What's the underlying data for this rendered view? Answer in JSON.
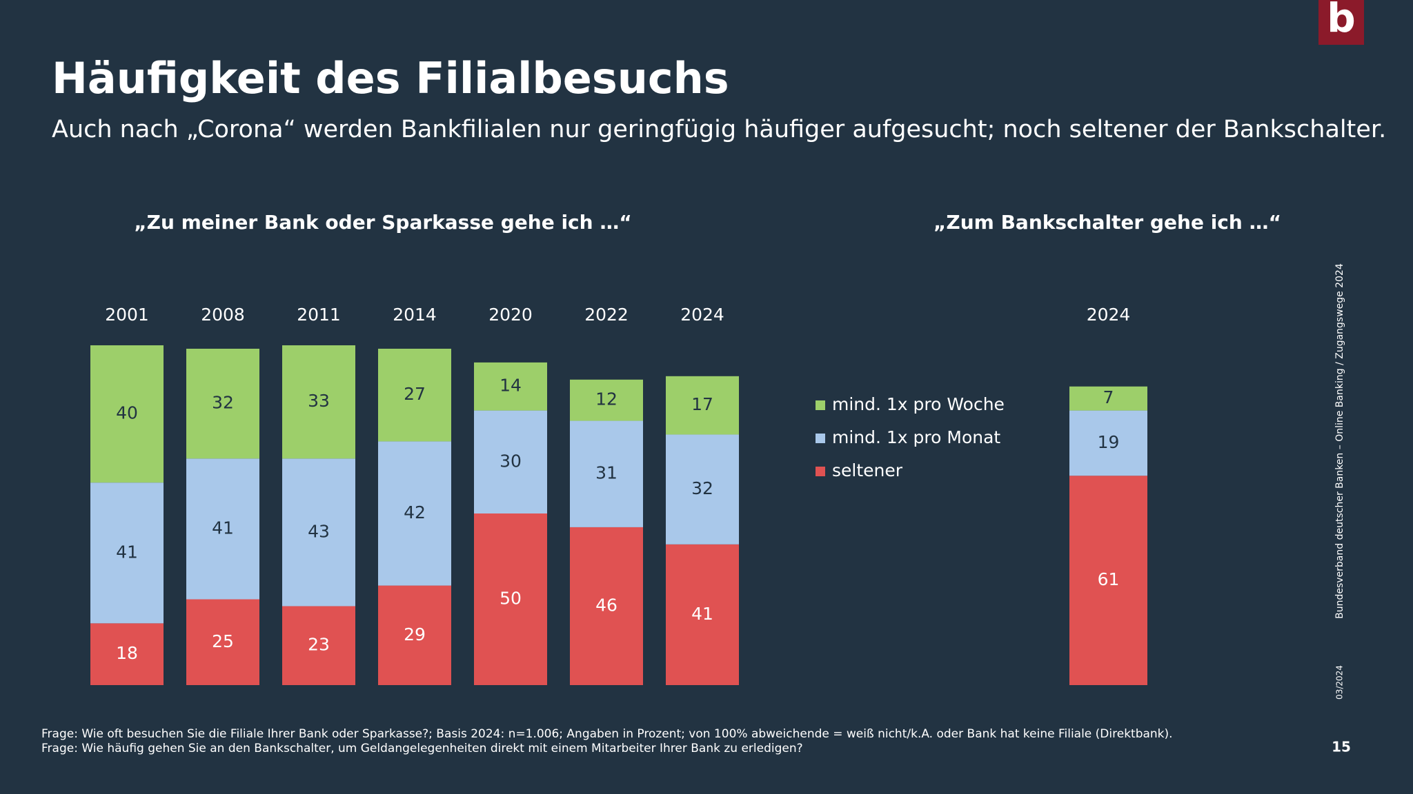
{
  "header": {
    "title": "Häufigkeit des Filialbesuchs",
    "subtitle": "Auch nach „Corona“ werden Bankfilialen nur geringfügig häufiger aufgesucht; noch seltener der Bankschalter.",
    "logo": "b"
  },
  "chart_data": [
    {
      "type": "stacked_bar",
      "title": "„Zu meiner Bank oder Sparkasse gehe ich …“",
      "categories": [
        "2001",
        "2008",
        "2011",
        "2014",
        "2020",
        "2022",
        "2024"
      ],
      "series": [
        {
          "name": "mind. 1x pro Woche",
          "color": "#9dcf6a",
          "values": [
            40,
            32,
            33,
            27,
            14,
            12,
            17
          ]
        },
        {
          "name": "mind. 1x pro Monat",
          "color": "#a9c8ea",
          "values": [
            41,
            41,
            43,
            42,
            30,
            31,
            32
          ]
        },
        {
          "name": "seltener",
          "color": "#e05252",
          "values": [
            18,
            25,
            23,
            29,
            50,
            46,
            41
          ]
        }
      ],
      "ylim": [
        0,
        100
      ],
      "legend": "right"
    },
    {
      "type": "stacked_bar",
      "title": "„Zum Bankschalter gehe ich …“",
      "categories": [
        "2024"
      ],
      "series": [
        {
          "color": "#9dcf6a",
          "values": [
            7
          ]
        },
        {
          "color": "#a9c8ea",
          "values": [
            19
          ]
        },
        {
          "color": "#e05252",
          "values": [
            61
          ]
        }
      ],
      "ylim": [
        0,
        100
      ]
    }
  ],
  "footnotes": [
    "Frage: Wie oft besuchen Sie die Filiale Ihrer Bank oder Sparkasse?; Basis 2024: n=1.006; Angaben in Prozent; von 100% abweichende = weiß nicht/k.A. oder Bank hat keine Filiale (Direktbank).",
    "Frage: Wie häufig gehen Sie an den Bankschalter, um Geldangelegenheiten  direkt mit einem Mitarbeiter Ihrer Bank zu erledigen?"
  ],
  "source": "Bundesverband deutscher Banken – Online Banking / Zugangswege  2024",
  "date": "03/2024",
  "page": "15"
}
